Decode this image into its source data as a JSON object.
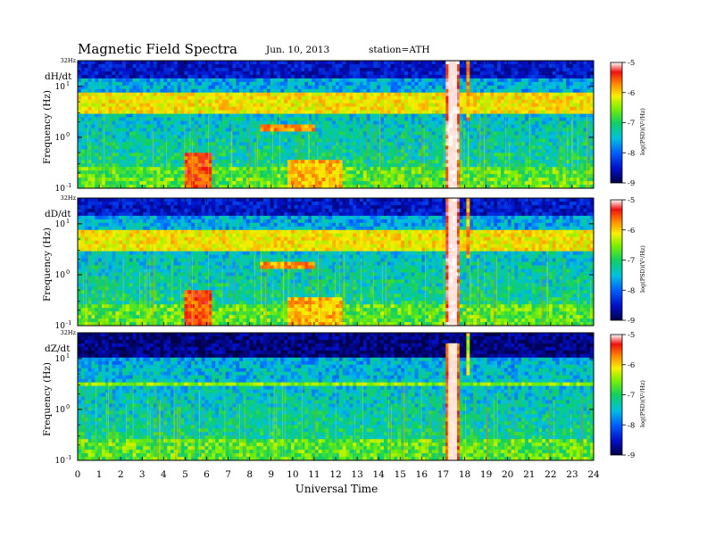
{
  "header": {
    "title": "Magnetic  Field  Spectra",
    "date": "Jun. 10, 2013",
    "station": "station=ATH"
  },
  "xaxis": {
    "label": "Universal Time",
    "ticks": [
      "0",
      "1",
      "2",
      "3",
      "4",
      "5",
      "6",
      "7",
      "8",
      "9",
      "10",
      "11",
      "12",
      "13",
      "14",
      "15",
      "16",
      "17",
      "18",
      "19",
      "20",
      "21",
      "22",
      "23",
      "24"
    ]
  },
  "panels": [
    {
      "label": "dH/dt",
      "ylabel": "Frequency  (Hz)",
      "top_label": "32Hz"
    },
    {
      "label": "dD/dt",
      "ylabel": "Frequency  (Hz)",
      "top_label": "32Hz"
    },
    {
      "label": "dZ/dt",
      "ylabel": "Frequency  (Hz)",
      "top_label": "32Hz"
    }
  ],
  "colorbar": {
    "label": "log(PSD)(V²/Hz)",
    "ticks": [
      "-5",
      "-6",
      "-7",
      "-8",
      "-9"
    ]
  },
  "colors": {
    "background_blue": "#0d2fb0",
    "band_red": "#e8222a",
    "green": "#33c95a",
    "cyan": "#22b4d8"
  },
  "chart_data": [
    {
      "type": "heatmap",
      "title": "Magnetic  Field  Spectra",
      "panel": "dH/dt",
      "xlabel": "Universal Time",
      "ylabel": "Frequency  (Hz)",
      "x_range": [
        0,
        24
      ],
      "y_range": [
        0.1,
        32
      ],
      "y_scale": "log",
      "value_range": [
        -9,
        -5
      ],
      "value_label": "log(PSD)(V²/Hz)",
      "features": [
        {
          "kind": "band",
          "t0": 0,
          "t1": 24,
          "f_low": 3.0,
          "f_high": 7.0,
          "level": -5.8
        },
        {
          "kind": "band",
          "t0": 0,
          "t1": 24,
          "f_low": 15,
          "f_high": 32,
          "level": -8.5
        },
        {
          "kind": "burst",
          "t0": 17.1,
          "t1": 17.8,
          "f_low": 0.1,
          "f_high": 32,
          "level": -5.0
        },
        {
          "kind": "burst",
          "t0": 18.1,
          "t1": 18.3,
          "f_low": 2,
          "f_high": 32,
          "level": -5.5
        },
        {
          "kind": "blob",
          "t0": 4.9,
          "t1": 6.3,
          "f_low": 0.1,
          "f_high": 0.5,
          "level": -5.2
        },
        {
          "kind": "blob",
          "t0": 9.7,
          "t1": 12.3,
          "f_low": 0.1,
          "f_high": 0.35,
          "level": -5.6
        },
        {
          "kind": "streak",
          "t0": 8.5,
          "t1": 11.0,
          "f_low": 1.3,
          "f_high": 1.9,
          "level": -5.5
        }
      ]
    },
    {
      "type": "heatmap",
      "panel": "dD/dt",
      "xlabel": "Universal Time",
      "ylabel": "Frequency  (Hz)",
      "x_range": [
        0,
        24
      ],
      "y_range": [
        0.1,
        32
      ],
      "y_scale": "log",
      "value_range": [
        -9,
        -5
      ],
      "value_label": "log(PSD)(V²/Hz)",
      "features": [
        {
          "kind": "band",
          "t0": 0,
          "t1": 24,
          "f_low": 3.0,
          "f_high": 7.0,
          "level": -5.8
        },
        {
          "kind": "band",
          "t0": 0,
          "t1": 24,
          "f_low": 15,
          "f_high": 32,
          "level": -8.5
        },
        {
          "kind": "burst",
          "t0": 17.1,
          "t1": 17.8,
          "f_low": 0.1,
          "f_high": 32,
          "level": -5.0
        },
        {
          "kind": "burst",
          "t0": 18.1,
          "t1": 18.3,
          "f_low": 2,
          "f_high": 32,
          "level": -5.5
        },
        {
          "kind": "blob",
          "t0": 4.9,
          "t1": 6.3,
          "f_low": 0.1,
          "f_high": 0.5,
          "level": -5.2
        },
        {
          "kind": "blob",
          "t0": 9.7,
          "t1": 12.3,
          "f_low": 0.1,
          "f_high": 0.35,
          "level": -5.6
        },
        {
          "kind": "streak",
          "t0": 8.5,
          "t1": 11.0,
          "f_low": 1.3,
          "f_high": 1.8,
          "level": -5.5
        }
      ]
    },
    {
      "type": "heatmap",
      "panel": "dZ/dt",
      "xlabel": "Universal Time",
      "ylabel": "Frequency  (Hz)",
      "x_range": [
        0,
        24
      ],
      "y_range": [
        0.1,
        32
      ],
      "y_scale": "log",
      "value_range": [
        -9,
        -5
      ],
      "value_label": "log(PSD)(V²/Hz)",
      "features": [
        {
          "kind": "band",
          "t0": 0,
          "t1": 24,
          "f_low": 2.7,
          "f_high": 3.5,
          "level": -6.2
        },
        {
          "kind": "band",
          "t0": 0,
          "t1": 24,
          "f_low": 10,
          "f_high": 32,
          "level": -8.8
        },
        {
          "kind": "burst",
          "t0": 17.1,
          "t1": 17.8,
          "f_low": 0.1,
          "f_high": 20,
          "level": -5.2
        },
        {
          "kind": "burst",
          "t0": 18.1,
          "t1": 18.3,
          "f_low": 5,
          "f_high": 32,
          "level": -6.0
        }
      ]
    }
  ]
}
